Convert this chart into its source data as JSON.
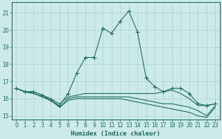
{
  "xlabel": "Humidex (Indice chaleur)",
  "bg_color": "#cceaea",
  "grid_color": "#aacfcf",
  "line_color": "#1a6b5a",
  "xlim": [
    -0.5,
    23.5
  ],
  "ylim": [
    14.8,
    21.6
  ],
  "yticks": [
    15,
    16,
    17,
    18,
    19,
    20,
    21
  ],
  "xticks": [
    0,
    1,
    2,
    3,
    4,
    5,
    6,
    7,
    8,
    9,
    10,
    11,
    12,
    13,
    14,
    15,
    16,
    17,
    18,
    19,
    20,
    21,
    22,
    23
  ],
  "line1_x": [
    0,
    1,
    2,
    3,
    4,
    5,
    6,
    7,
    8,
    9,
    10,
    11,
    12,
    13,
    14,
    15,
    16,
    17,
    18,
    19,
    20,
    21,
    22,
    23
  ],
  "line1_y": [
    16.6,
    16.4,
    16.4,
    16.2,
    15.9,
    15.6,
    16.3,
    17.5,
    18.4,
    18.4,
    20.1,
    19.8,
    20.5,
    21.1,
    19.9,
    17.2,
    16.7,
    16.4,
    16.6,
    16.6,
    16.3,
    15.7,
    15.6,
    15.7
  ],
  "line2_x": [
    0,
    1,
    2,
    3,
    4,
    5,
    6,
    7,
    8,
    9,
    10,
    11,
    12,
    13,
    14,
    15,
    16,
    17,
    18,
    19,
    20,
    21,
    22,
    23
  ],
  "line2_y": [
    16.6,
    16.4,
    16.4,
    16.2,
    16.0,
    15.7,
    16.1,
    16.2,
    16.3,
    16.3,
    16.3,
    16.3,
    16.3,
    16.3,
    16.3,
    16.3,
    16.3,
    16.4,
    16.5,
    16.3,
    16.0,
    15.6,
    15.6,
    15.7
  ],
  "line3_x": [
    0,
    1,
    2,
    3,
    4,
    5,
    6,
    7,
    8,
    9,
    10,
    11,
    12,
    13,
    14,
    15,
    16,
    17,
    18,
    19,
    20,
    21,
    22,
    23
  ],
  "line3_y": [
    16.6,
    16.4,
    16.3,
    16.1,
    15.9,
    15.5,
    16.0,
    16.1,
    16.1,
    16.1,
    16.1,
    16.1,
    16.1,
    16.1,
    16.0,
    15.9,
    15.8,
    15.7,
    15.7,
    15.6,
    15.5,
    15.3,
    15.0,
    15.6
  ],
  "line4_x": [
    0,
    1,
    2,
    3,
    4,
    5,
    6,
    7,
    8,
    9,
    10,
    11,
    12,
    13,
    14,
    15,
    16,
    17,
    18,
    19,
    20,
    21,
    22,
    23
  ],
  "line4_y": [
    16.6,
    16.4,
    16.3,
    16.1,
    15.9,
    15.5,
    15.9,
    16.0,
    16.0,
    16.0,
    16.0,
    16.0,
    16.0,
    15.9,
    15.8,
    15.7,
    15.6,
    15.5,
    15.4,
    15.3,
    15.2,
    15.0,
    14.9,
    15.5
  ]
}
